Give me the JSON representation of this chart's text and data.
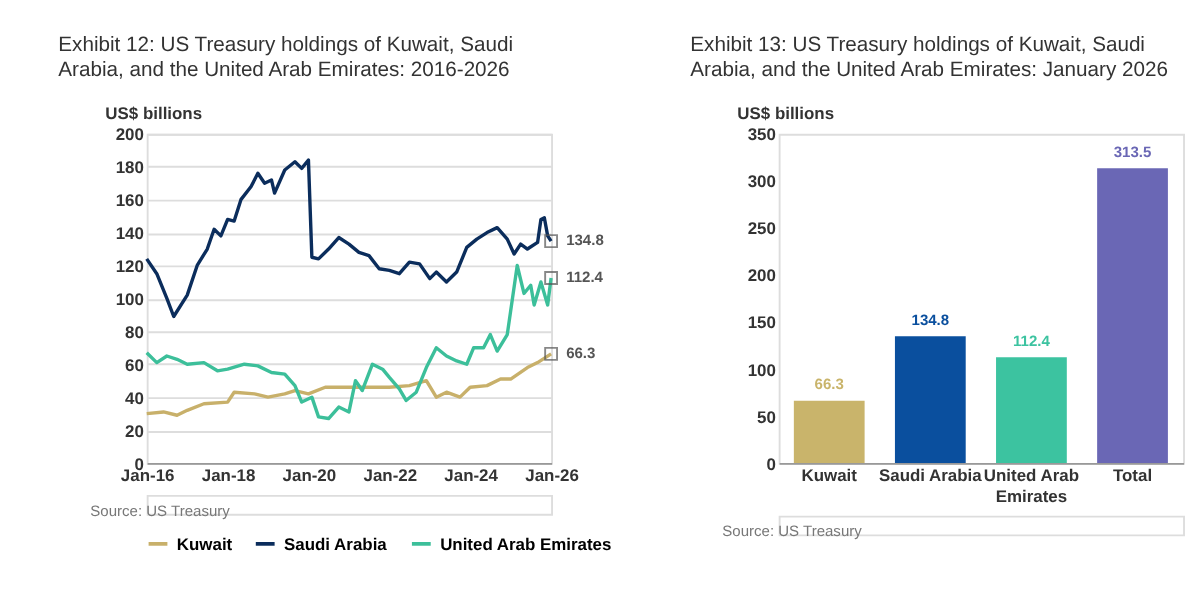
{
  "chart_data": [
    {
      "type": "line",
      "title": "Exhibit 12: US Treasury holdings of Kuwait, Saudi Arabia, and the United Arab Emirates: 2016-2026",
      "ylabel": "US$ billions",
      "series": [
        {
          "name": "Kuwait",
          "color": "#c8b06a",
          "x": [
            "2016-01",
            "2016-06",
            "2016-10",
            "2017-01",
            "2017-06",
            "2018-01",
            "2018-03",
            "2018-09",
            "2019-01",
            "2019-06",
            "2019-09",
            "2020-01",
            "2020-06",
            "2021-01",
            "2021-06",
            "2022-01",
            "2022-07",
            "2022-12",
            "2023-03",
            "2023-06",
            "2023-10",
            "2024-01",
            "2024-06",
            "2024-10",
            "2025-01",
            "2025-06",
            "2025-09",
            "2026-01"
          ],
          "values": [
            30,
            31,
            29,
            32,
            36,
            37,
            43,
            42,
            40,
            42,
            44,
            42,
            46,
            46,
            46,
            46,
            47,
            50,
            40,
            43,
            40,
            46,
            47,
            51,
            51,
            58,
            61,
            66.3
          ]
        },
        {
          "name": "Saudi Arabia",
          "color": "#0b2d5c",
          "x": [
            "2016-01",
            "2016-04",
            "2016-07",
            "2016-09",
            "2017-01",
            "2017-04",
            "2017-07",
            "2017-09",
            "2017-11",
            "2018-01",
            "2018-03",
            "2018-05",
            "2018-08",
            "2018-10",
            "2018-12",
            "2019-02",
            "2019-03",
            "2019-06",
            "2019-09",
            "2019-11",
            "2020-01",
            "2020-02",
            "2020-04",
            "2020-07",
            "2020-10",
            "2021-01",
            "2021-04",
            "2021-07",
            "2021-10",
            "2022-01",
            "2022-04",
            "2022-07",
            "2022-10",
            "2023-01",
            "2023-03",
            "2023-06",
            "2023-09",
            "2023-12",
            "2024-03",
            "2024-06",
            "2024-09",
            "2024-12",
            "2025-02",
            "2025-04",
            "2025-06",
            "2025-09",
            "2025-10",
            "2025-11",
            "2025-12",
            "2026-01"
          ],
          "values": [
            124,
            115,
            100,
            89,
            102,
            120,
            130,
            142,
            138,
            148,
            147,
            160,
            168,
            176,
            170,
            172,
            164,
            178,
            183,
            179,
            184,
            125,
            124,
            130,
            137,
            133,
            128,
            126,
            118,
            117,
            115,
            122,
            121,
            112,
            116,
            110,
            116,
            131,
            136,
            140,
            143,
            136,
            127,
            133,
            130,
            134,
            148,
            149,
            138,
            134.8
          ]
        },
        {
          "name": "United Arab Emirates",
          "color": "#3cbf9a",
          "x": [
            "2016-01",
            "2016-04",
            "2016-07",
            "2016-10",
            "2017-01",
            "2017-06",
            "2017-10",
            "2018-01",
            "2018-06",
            "2018-10",
            "2019-02",
            "2019-06",
            "2019-09",
            "2019-11",
            "2020-02",
            "2020-04",
            "2020-07",
            "2020-10",
            "2021-01",
            "2021-03",
            "2021-05",
            "2021-08",
            "2021-11",
            "2022-01",
            "2022-04",
            "2022-06",
            "2022-09",
            "2022-12",
            "2023-03",
            "2023-06",
            "2023-09",
            "2023-12",
            "2024-02",
            "2024-05",
            "2024-07",
            "2024-09",
            "2024-12",
            "2025-03",
            "2025-05",
            "2025-07",
            "2025-08",
            "2025-10",
            "2025-12",
            "2026-01"
          ],
          "values": [
            67,
            61,
            65,
            63,
            60,
            61,
            56,
            57,
            60,
            59,
            55,
            54,
            47,
            37,
            40,
            28,
            27,
            34,
            31,
            50,
            44,
            60,
            57,
            52,
            45,
            38,
            43,
            58,
            70,
            65,
            62,
            60,
            70,
            70,
            78,
            68,
            78,
            120,
            103,
            108,
            96,
            110,
            96,
            112.4
          ]
        }
      ],
      "xlim": [
        "2016-01",
        "2026-01"
      ],
      "xticks": [
        {
          "value": "2016-01",
          "label": "Jan-16"
        },
        {
          "value": "2018-01",
          "label": "Jan-18"
        },
        {
          "value": "2020-01",
          "label": "Jan-20"
        },
        {
          "value": "2022-01",
          "label": "Jan-22"
        },
        {
          "value": "2024-01",
          "label": "Jan-24"
        },
        {
          "value": "2026-01",
          "label": "Jan-26"
        }
      ],
      "ylim": [
        0,
        200
      ],
      "yticks": [
        0,
        20,
        40,
        60,
        80,
        100,
        120,
        140,
        160,
        180,
        200
      ],
      "grid": "y",
      "legend": "bottom",
      "annotations": [
        {
          "text": "134.8",
          "x": "2026-01",
          "y": 134.8
        },
        {
          "text": "112.4",
          "x": "2026-01",
          "y": 112.4
        },
        {
          "text": "66.3",
          "x": "2026-01",
          "y": 66.3
        },
        "Source: US Treasury"
      ]
    },
    {
      "type": "bar",
      "title": "Exhibit 13: US Treasury holdings of Kuwait, Saudi Arabia, and the United Arab Emirates: January 2026",
      "ylabel": "US$ billions",
      "categories": [
        "Kuwait",
        "Saudi Arabia",
        "United Arab Emirates",
        "Total"
      ],
      "values": [
        66.3,
        134.8,
        112.4,
        313.5
      ],
      "colors": [
        "#c9b46b",
        "#0a4f9e",
        "#3cc3a0",
        "#6a67b5"
      ],
      "data_labels": true,
      "ylim": [
        0,
        350
      ],
      "yticks": [
        0,
        50,
        100,
        150,
        200,
        250,
        300,
        350
      ],
      "grid": false,
      "annotations": [
        "Source: US Treasury"
      ]
    }
  ]
}
